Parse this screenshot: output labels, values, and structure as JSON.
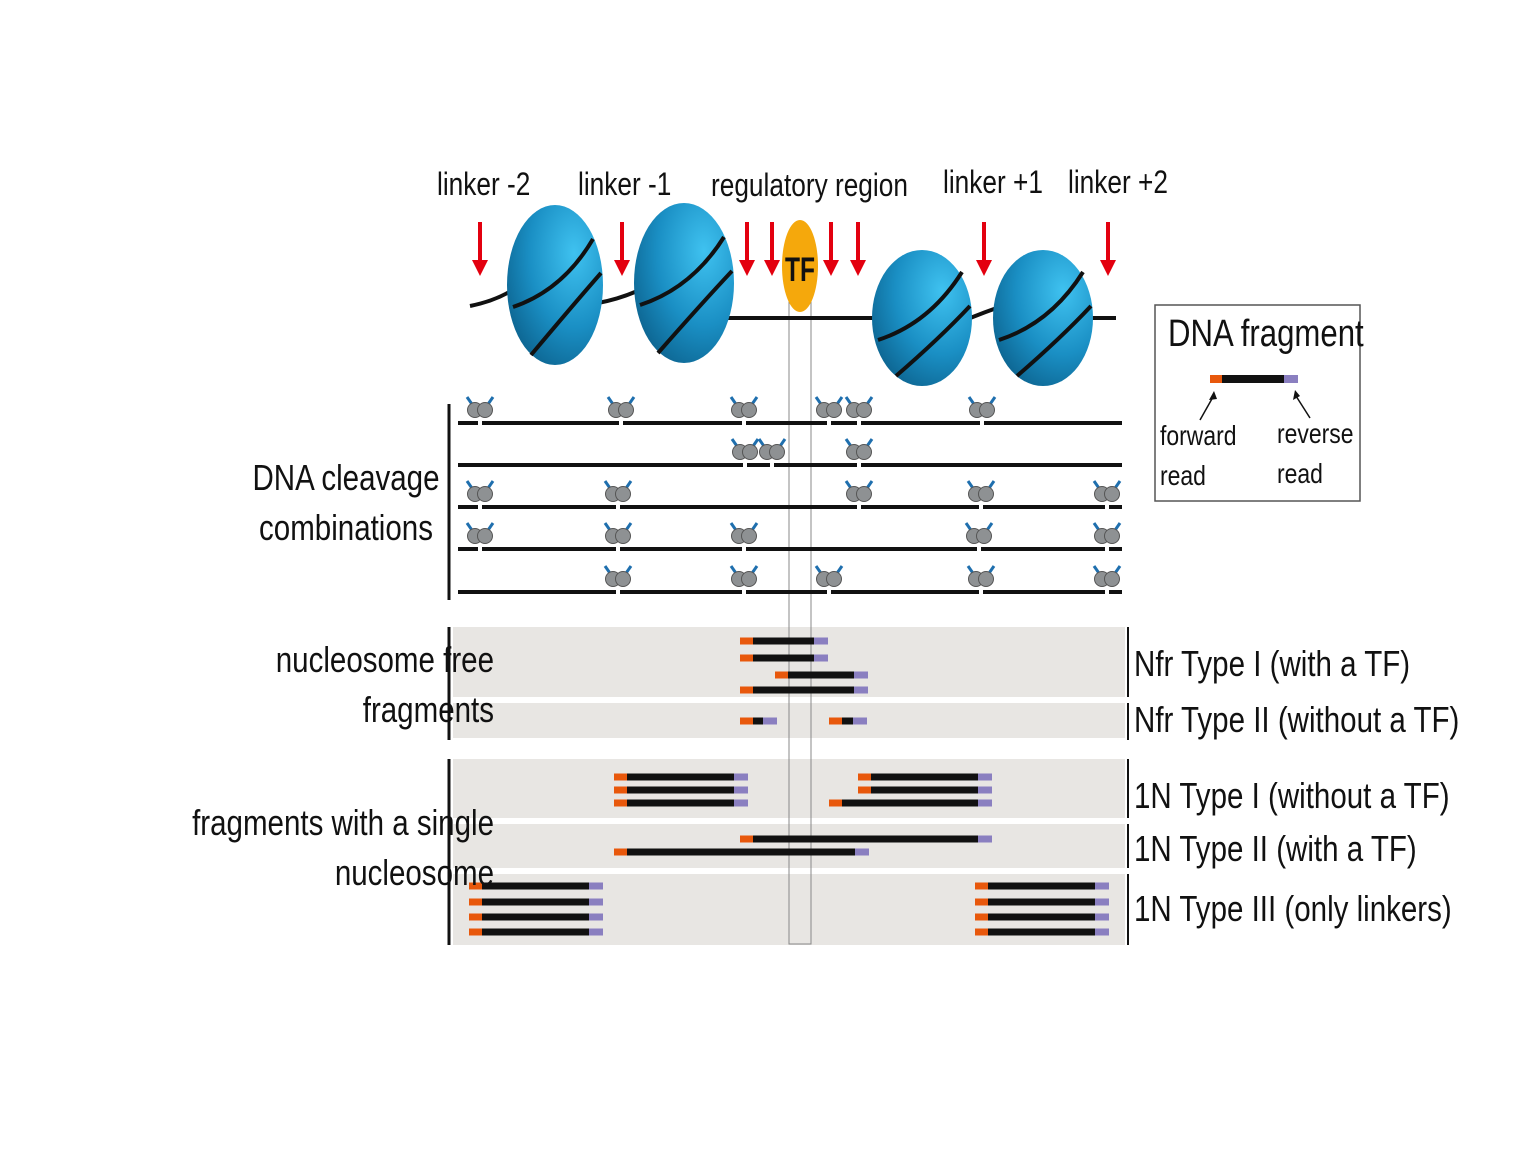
{
  "top_labels": {
    "linker_m2": "linker -2",
    "linker_m1": "linker -1",
    "regulatory": "regulatory region",
    "linker_p1": "linker +1",
    "linker_p2": "linker +2"
  },
  "tf_label": "TF",
  "legend": {
    "title": "DNA fragment",
    "forward_read": "forward read",
    "reverse_read": "reverse read"
  },
  "section_labels": {
    "cleavage": "DNA cleavage combinations",
    "nfr": "nucleosome free fragments",
    "single": "fragments with a single nucleosome"
  },
  "type_labels": {
    "nfr1": "Nfr Type I  (with a TF)",
    "nfr2": "Nfr Type II (without a TF)",
    "n1": "1N Type I (without a TF)",
    "n2": "1N Type II (with a TF)",
    "n3": "1N Type III (only linkers)"
  },
  "colors": {
    "nucleosome": "#1a8fc4",
    "tf": "#f5a80c",
    "arrow": "#e3000f",
    "forward_read": "#e8580c",
    "reverse_read": "#8a7fc0",
    "panel_bg": "#e8e6e3",
    "dna": "#111111"
  }
}
